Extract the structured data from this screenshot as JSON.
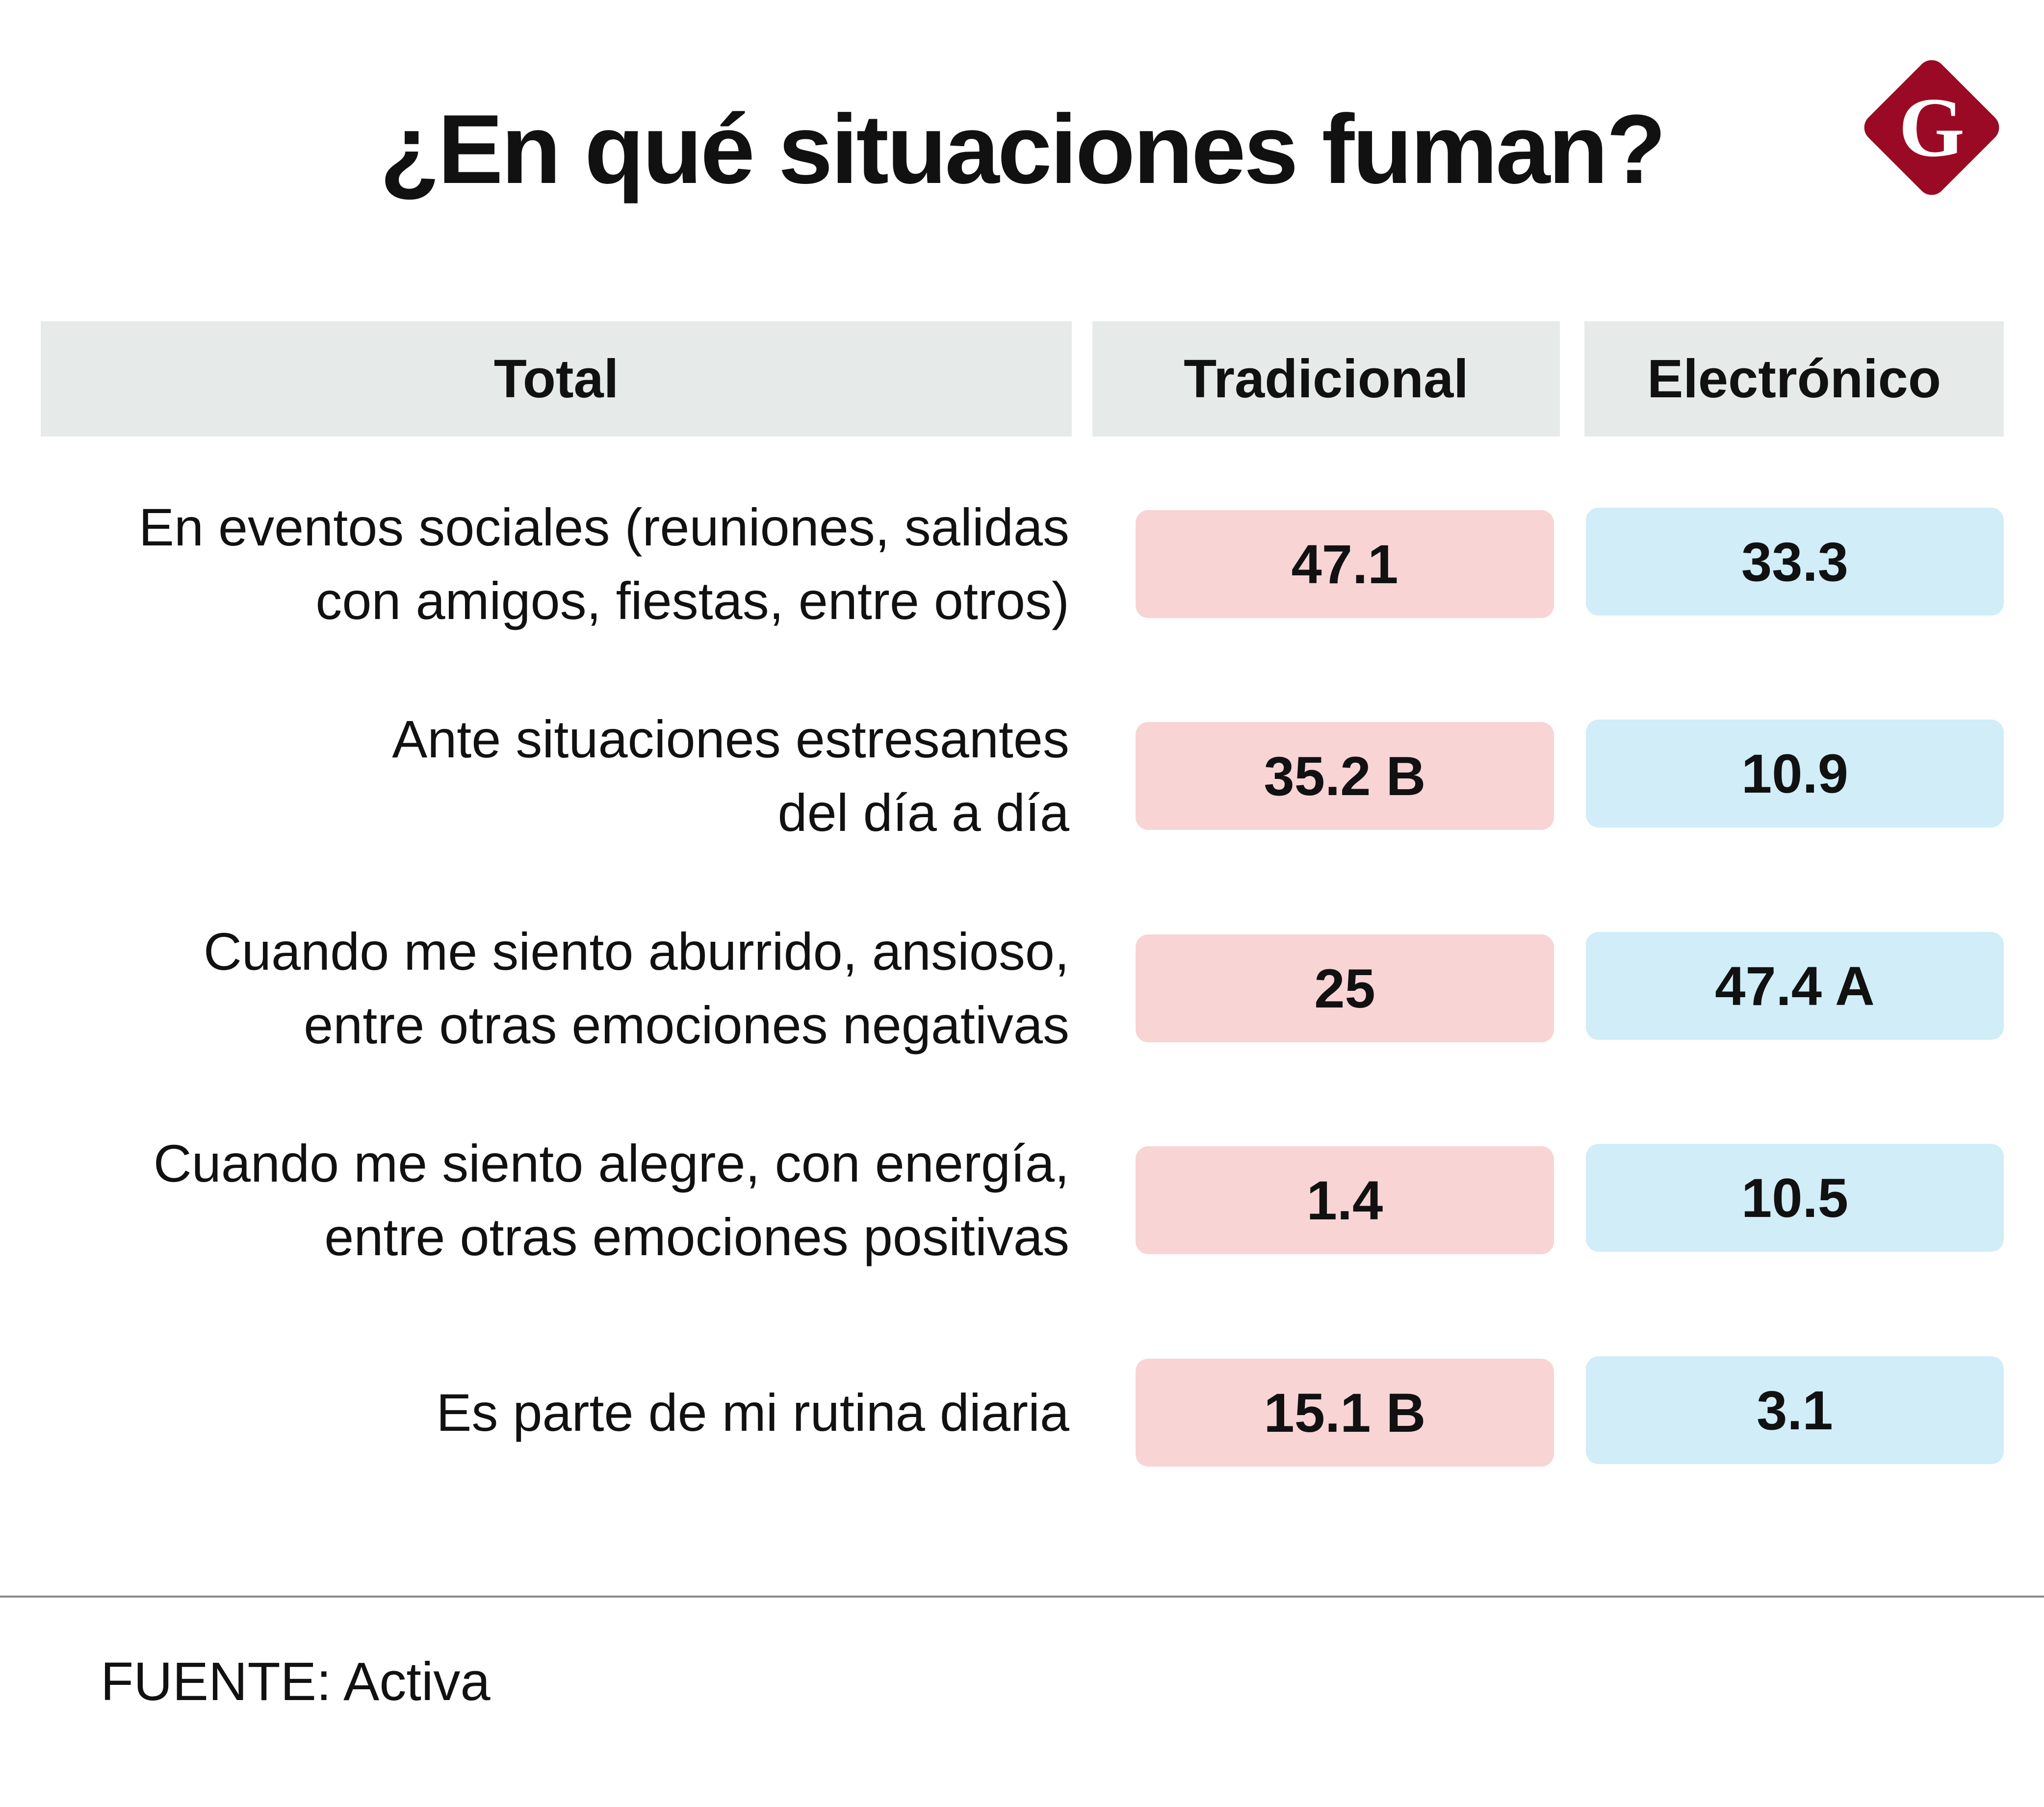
{
  "title": "¿En qué situaciones fuman?",
  "logo": {
    "letter": "G",
    "color": "#9b0a24"
  },
  "headers": [
    "Total",
    "Tradicional",
    "Electrónico"
  ],
  "rows": [
    {
      "label_lines": [
        "En eventos sociales (reuniones, salidas",
        "con amigos, fiestas, entre otros)"
      ],
      "tradicional": "47.1",
      "electronico": "33.3"
    },
    {
      "label_lines": [
        "Ante situaciones estresantes",
        "del día a día"
      ],
      "tradicional": "35.2 B",
      "electronico": "10.9"
    },
    {
      "label_lines": [
        "Cuando me siento aburrido, ansioso,",
        "entre otras emociones negativas"
      ],
      "tradicional": "25",
      "electronico": "47.4 A"
    },
    {
      "label_lines": [
        "Cuando me siento alegre, con energía,",
        "entre otras emociones positivas"
      ],
      "tradicional": "1.4",
      "electronico": "10.5"
    },
    {
      "label_lines": [
        "Es parte de mi rutina diaria"
      ],
      "tradicional": "15.1 B",
      "electronico": "3.1"
    }
  ],
  "source": "FUENTE: Activa",
  "chart_data": {
    "type": "table",
    "title": "¿En qué situaciones fuman?",
    "columns": [
      "Total",
      "Tradicional",
      "Electrónico"
    ],
    "categories": [
      "En eventos sociales (reuniones, salidas con amigos, fiestas, entre otros)",
      "Ante situaciones estresantes del día a día",
      "Cuando me siento aburrido, ansioso, entre otras emociones negativas",
      "Cuando me siento alegre, con energía, entre otras emociones positivas",
      "Es parte de mi rutina diaria"
    ],
    "series": [
      {
        "name": "Tradicional",
        "values": [
          47.1,
          35.2,
          25,
          1.4,
          15.1
        ],
        "flags": [
          "",
          "B",
          "",
          "",
          "B"
        ]
      },
      {
        "name": "Electrónico",
        "values": [
          33.3,
          10.9,
          47.4,
          10.5,
          3.1
        ],
        "flags": [
          "",
          "",
          "A",
          "",
          ""
        ]
      }
    ],
    "source": "FUENTE: Activa"
  }
}
